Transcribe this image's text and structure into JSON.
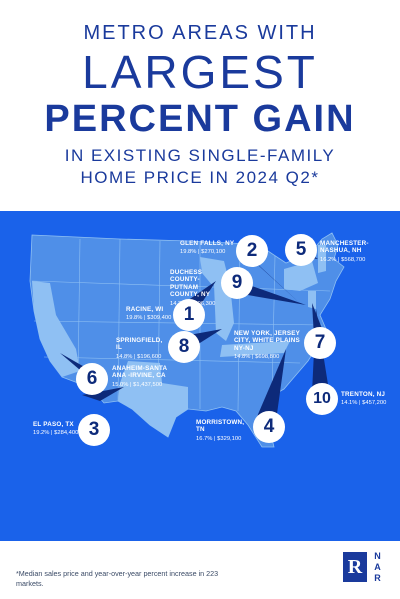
{
  "header": {
    "line1": "METRO AREAS WITH",
    "line2": "LARGEST",
    "line3": "PERCENT GAIN",
    "line4": "IN EXISTING SINGLE-FAMILY",
    "line5": "HOME PRICE IN 2024 Q2*"
  },
  "colors": {
    "brand_blue": "#1a3a9c",
    "map_background": "#1a62ea",
    "land_light": "#4f8fe8",
    "state_highlight": "#8fc0f3",
    "navy_pointer": "#0d2a7a"
  },
  "metros": [
    {
      "rank": "1",
      "name": "RACINE, WI",
      "value": "19.8% | $309,400"
    },
    {
      "rank": "2",
      "name": "GLEN FALLS, NY",
      "value": "19.8% | $270,100"
    },
    {
      "rank": "3",
      "name": "EL PASO, TX",
      "value": "19.2% | $284,400"
    },
    {
      "rank": "4",
      "name": "MORRISTOWN, TN",
      "value": "16.7% | $329,100"
    },
    {
      "rank": "5",
      "name": "MANCHESTER-NASHUA, NH",
      "value": "16.2% | $568,700"
    },
    {
      "rank": "6",
      "name": "ANAHEIM-SANTA ANA -IRVINE, CA",
      "value": "15.0% | $1,437,500"
    },
    {
      "rank": "7",
      "name": "NEW YORK, JERSEY CITY, WHITE PLAINS NY-NJ",
      "value": "14.8% | $698,800"
    },
    {
      "rank": "8",
      "name": "SPRINGFIELD, IL",
      "value": "14.8% | $196,600"
    },
    {
      "rank": "9",
      "name": "DUCHESS COUNTY-PUTNAM COUNTY, NY",
      "value": "14.2% | $496,300"
    },
    {
      "rank": "10",
      "name": "TRENTON, NJ",
      "value": "14.1% | $457,200"
    }
  ],
  "footnote": "*Median sales price and year-over-year percent increase in 223 markets.",
  "logo": {
    "letter": "R",
    "text": "NAR"
  }
}
